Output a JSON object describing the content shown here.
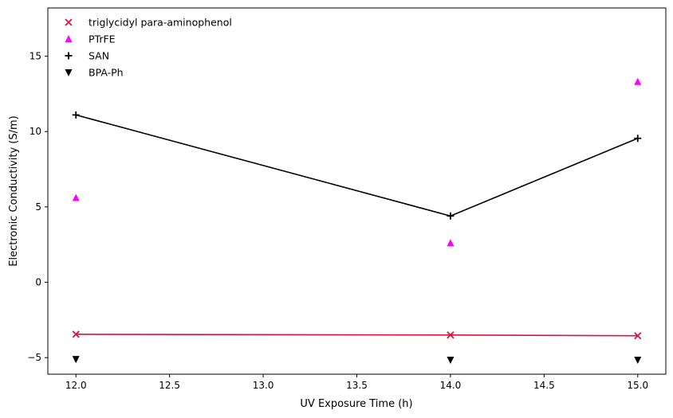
{
  "chart_data": {
    "type": "scatter",
    "xlabel": "UV Exposure Time (h)",
    "ylabel": "Electronic Conductivity (S/m)",
    "xlim": [
      11.85,
      15.15
    ],
    "ylim": [
      -6.1,
      18.2
    ],
    "x_ticks": [
      12.0,
      12.5,
      13.0,
      13.5,
      14.0,
      14.5,
      15.0
    ],
    "x_tick_labels": [
      "12.0",
      "12.5",
      "13.0",
      "13.5",
      "14.0",
      "14.5",
      "15.0"
    ],
    "y_ticks": [
      -5,
      0,
      5,
      10,
      15
    ],
    "y_tick_labels": [
      "−5",
      "0",
      "5",
      "10",
      "15"
    ],
    "grid": false,
    "legend_position": "top-left",
    "series": [
      {
        "name": "triglycidyl para-aminophenol",
        "marker": "x",
        "color": "#dc143c",
        "line": true,
        "x": [
          12,
          14,
          15
        ],
        "y": [
          -3.45,
          -3.5,
          -3.55
        ]
      },
      {
        "name": "PTrFE",
        "marker": "triangle-up",
        "color": "#ff00ff",
        "line": false,
        "x": [
          12,
          14,
          15
        ],
        "y": [
          5.6,
          2.6,
          13.3
        ]
      },
      {
        "name": "SAN",
        "marker": "plus",
        "color": "#000000",
        "line": true,
        "x": [
          12,
          14,
          15
        ],
        "y": [
          11.1,
          4.4,
          9.55
        ]
      },
      {
        "name": "BPA-Ph",
        "marker": "triangle-down",
        "color": "#000000",
        "line": false,
        "x": [
          12,
          14,
          15
        ],
        "y": [
          -5.1,
          -5.15,
          -5.15
        ]
      }
    ]
  }
}
